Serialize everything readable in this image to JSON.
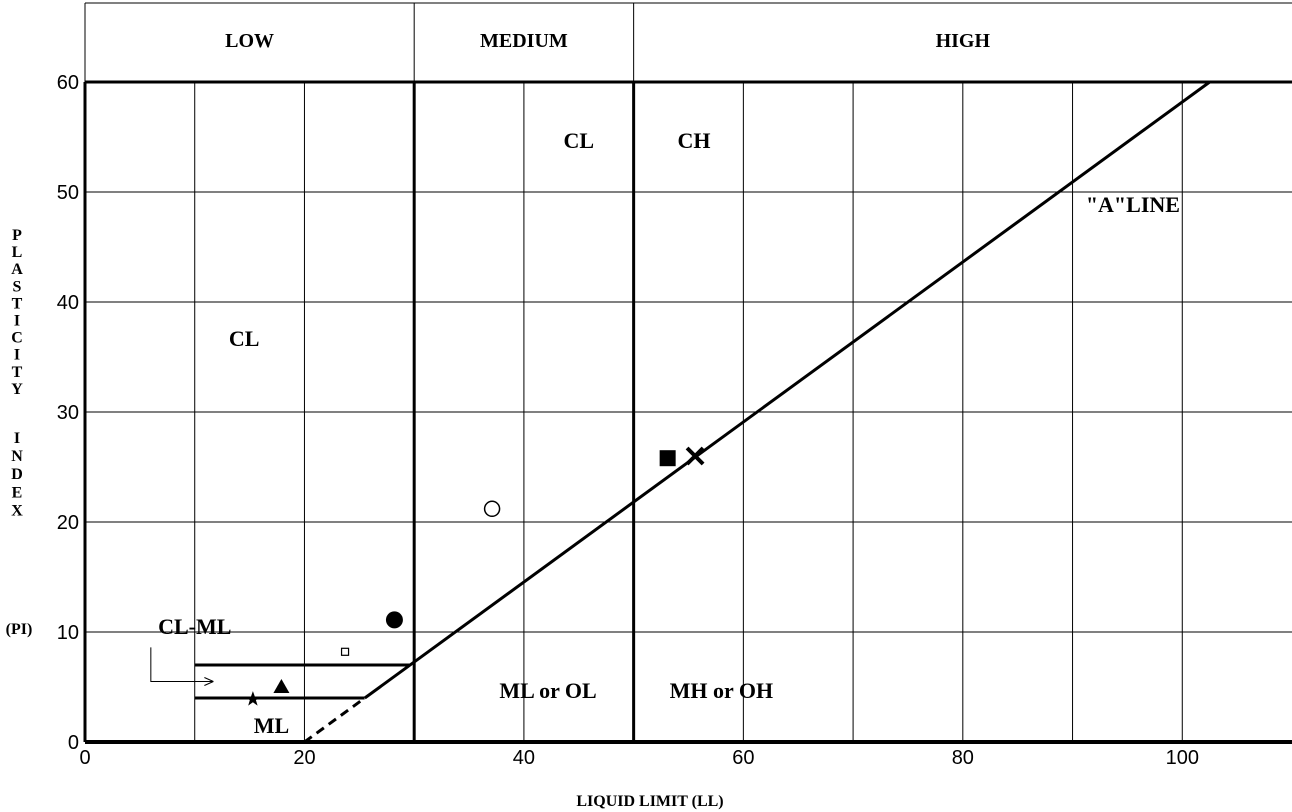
{
  "chart_data": {
    "type": "scatter",
    "title": "",
    "xlabel": "LIQUID LIMIT (LL)",
    "ylabel_letters": [
      "P",
      "L",
      "A",
      "S",
      "T",
      "I",
      "C",
      "I",
      "T",
      "Y",
      "",
      "I",
      "N",
      "D",
      "E",
      "X"
    ],
    "ylabel_suffix": "(PI)",
    "xlim": [
      0,
      110
    ],
    "ylim": [
      0,
      60
    ],
    "x_ticks": [
      0,
      20,
      40,
      60,
      80,
      100
    ],
    "y_ticks": [
      0,
      10,
      20,
      30,
      40,
      50,
      60
    ],
    "grid": true,
    "bands": [
      {
        "label": "LOW",
        "from": 0,
        "to": 30
      },
      {
        "label": "MEDIUM",
        "from": 30,
        "to": 50
      },
      {
        "label": "HIGH",
        "from": 50,
        "to": 110
      }
    ],
    "a_line": {
      "label": "\"A\"LINE",
      "from": [
        25.5,
        4
      ],
      "to": [
        102.5,
        60
      ],
      "dashed_from": [
        20,
        0
      ],
      "dashed_to": [
        25.5,
        4
      ]
    },
    "cl_ml_band": {
      "label": "CL-ML",
      "upper_pi": 7,
      "lower_pi": 4,
      "x_start": 10
    },
    "region_labels": [
      {
        "text": "CL",
        "x": 14.5,
        "y": 36
      },
      {
        "text": "CL",
        "x": 45,
        "y": 54
      },
      {
        "text": "CH",
        "x": 55.5,
        "y": 54
      },
      {
        "text": "ML",
        "x": 17,
        "y": 0.8
      },
      {
        "text": "ML or OL",
        "x": 42.2,
        "y": 4
      },
      {
        "text": "MH or OH",
        "x": 58,
        "y": 4
      }
    ],
    "points": [
      {
        "x": 15.3,
        "y": 3.9,
        "marker": "star"
      },
      {
        "x": 17.9,
        "y": 5,
        "marker": "triangle"
      },
      {
        "x": 23.7,
        "y": 8.2,
        "marker": "small-open-square"
      },
      {
        "x": 28.2,
        "y": 11.1,
        "marker": "filled-circle"
      },
      {
        "x": 37.1,
        "y": 21.2,
        "marker": "open-circle"
      },
      {
        "x": 53.1,
        "y": 25.8,
        "marker": "filled-square"
      },
      {
        "x": 55.6,
        "y": 26,
        "marker": "x"
      }
    ]
  }
}
